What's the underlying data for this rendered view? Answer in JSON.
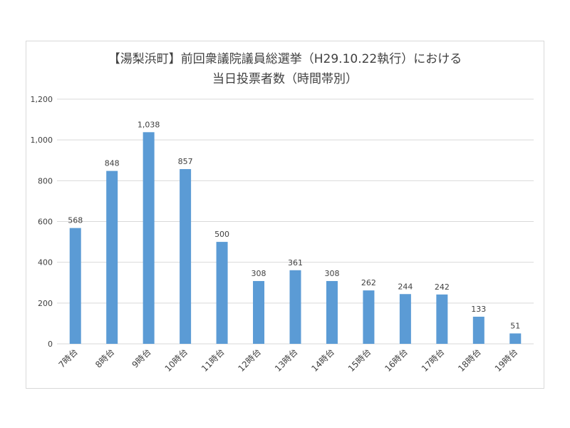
{
  "chart_data": {
    "type": "bar",
    "title": "【湯梨浜町】前回衆議院議員総選挙（H29.10.22執行）における",
    "subtitle": "当日投票者数（時間帯別）",
    "xlabel": "",
    "ylabel": "",
    "categories": [
      "7時台",
      "8時台",
      "9時台",
      "10時台",
      "11時台",
      "12時台",
      "13時台",
      "14時台",
      "15時台",
      "16時台",
      "17時台",
      "18時台",
      "19時台"
    ],
    "values": [
      568,
      848,
      1038,
      857,
      500,
      308,
      361,
      308,
      262,
      244,
      242,
      133,
      51
    ],
    "data_labels": [
      "568",
      "848",
      "1,038",
      "857",
      "500",
      "308",
      "361",
      "308",
      "262",
      "244",
      "242",
      "133",
      "51"
    ],
    "ylim": [
      0,
      1200
    ],
    "y_ticks": [
      0,
      200,
      400,
      600,
      800,
      1000,
      1200
    ],
    "y_tick_labels": [
      "0",
      "200",
      "400",
      "600",
      "800",
      "1,000",
      "1,200"
    ],
    "grid": true,
    "legend": "none",
    "bar_color": "#5b9bd5",
    "grid_color": "#d9d9d9",
    "text_color": "#404040"
  }
}
